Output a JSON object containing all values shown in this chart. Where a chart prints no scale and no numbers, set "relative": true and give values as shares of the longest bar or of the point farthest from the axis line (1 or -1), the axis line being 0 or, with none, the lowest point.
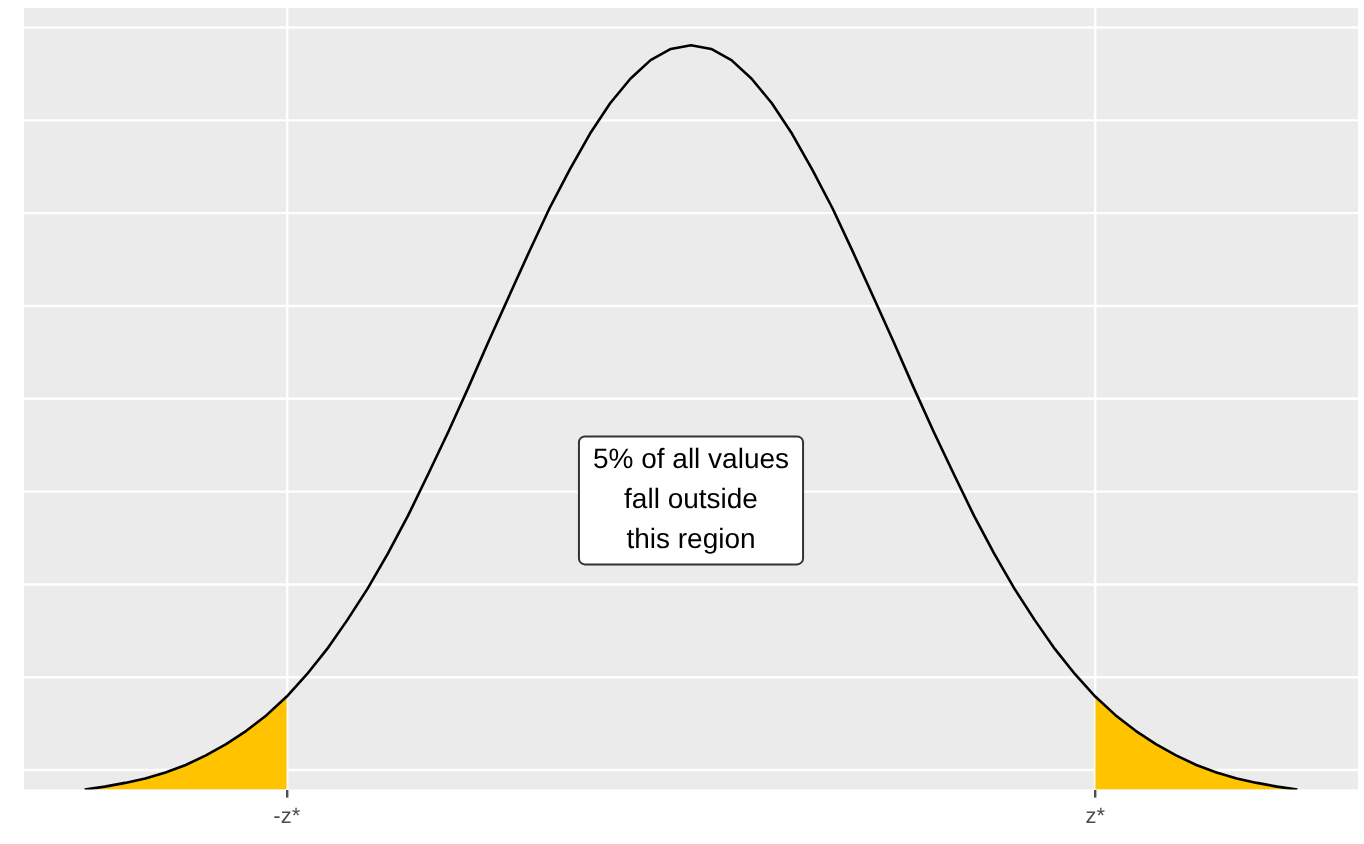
{
  "chart_data": {
    "type": "line",
    "relative": true,
    "categories": [
      null,
      null,
      null,
      null,
      null,
      null,
      null,
      null,
      null,
      null,
      null,
      null,
      null,
      "-z*",
      null,
      null,
      null,
      null,
      null,
      null,
      null,
      null,
      null,
      null,
      null,
      null,
      null,
      null,
      null,
      null,
      null,
      null,
      null,
      null,
      null,
      null,
      null,
      null,
      null,
      null,
      null,
      null,
      null,
      null,
      null,
      null,
      null,
      null,
      null,
      null,
      null,
      null,
      null,
      "z*",
      null,
      null,
      null,
      null,
      null,
      null,
      null,
      null,
      null,
      null,
      null,
      null,
      null
    ],
    "grid": true,
    "tick_labels": "x",
    "marker": "none",
    "annotations": [
      "5% of all values\nfall outside\nthis region"
    ],
    "series": [
      {
        "type": "area",
        "color": "#ffc300",
        "values": [
          null,
          null,
          null,
          0,
          0.004,
          0.009,
          0.015,
          0.023,
          0.033,
          0.046,
          0.061,
          0.079,
          0.1,
          0.125,
          null,
          null,
          null,
          null,
          null,
          null,
          null,
          null,
          null,
          null,
          null,
          null,
          null,
          null,
          null,
          null,
          null,
          null,
          null,
          null,
          null,
          null,
          null,
          null,
          null,
          null,
          null,
          null,
          null,
          null,
          null,
          null,
          null,
          null,
          null,
          null,
          null,
          null,
          null,
          null,
          null,
          null,
          null,
          null,
          null,
          null,
          null,
          null,
          null,
          null,
          null,
          null,
          null
        ]
      },
      {
        "type": "area",
        "color": "#ffc300",
        "values": [
          null,
          null,
          null,
          null,
          null,
          null,
          null,
          null,
          null,
          null,
          null,
          null,
          null,
          null,
          null,
          null,
          null,
          null,
          null,
          null,
          null,
          null,
          null,
          null,
          null,
          null,
          null,
          null,
          null,
          null,
          null,
          null,
          null,
          null,
          null,
          null,
          null,
          null,
          null,
          null,
          null,
          null,
          null,
          null,
          null,
          null,
          null,
          null,
          null,
          null,
          null,
          null,
          null,
          0.125,
          0.1,
          0.079,
          0.061,
          0.046,
          0.033,
          0.023,
          0.015,
          0.009,
          0.004,
          0,
          null,
          null,
          null
        ]
      },
      {
        "type": "line",
        "color": "#000000",
        "values": [
          null,
          null,
          null,
          0,
          0.004,
          0.009,
          0.015,
          0.023,
          0.033,
          0.046,
          0.061,
          0.079,
          0.1,
          0.125,
          0.155,
          0.189,
          0.228,
          0.27,
          0.317,
          0.368,
          0.424,
          0.481,
          0.541,
          0.603,
          0.663,
          0.723,
          0.781,
          0.833,
          0.881,
          0.922,
          0.955,
          0.98,
          0.995,
          1,
          0.995,
          0.98,
          0.955,
          0.922,
          0.881,
          0.833,
          0.781,
          0.723,
          0.663,
          0.603,
          0.541,
          0.481,
          0.424,
          0.368,
          0.317,
          0.27,
          0.228,
          0.189,
          0.155,
          0.125,
          0.1,
          0.079,
          0.061,
          0.046,
          0.033,
          0.023,
          0.015,
          0.009,
          0.004,
          0,
          null,
          null,
          null
        ]
      }
    ]
  }
}
